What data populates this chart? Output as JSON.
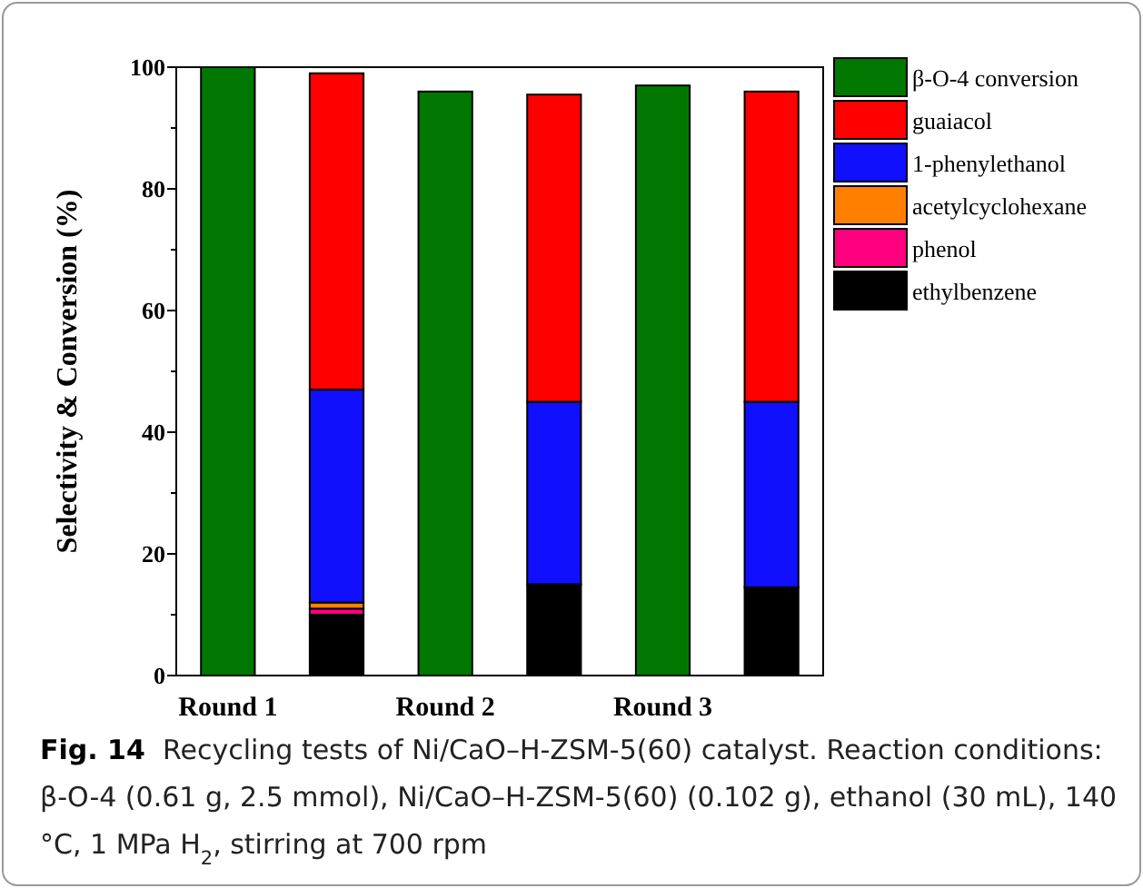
{
  "chart_data": {
    "type": "bar",
    "ylabel": "Selectivity & Conversion (%)",
    "categories": [
      "Round 1",
      null,
      "Round 2",
      null,
      "Round 3",
      null
    ],
    "stacked": true,
    "series": [
      {
        "name": "β-O-4 conversion",
        "color": "#007800",
        "values": [
          100,
          null,
          96,
          null,
          97,
          null
        ]
      },
      {
        "name": "ethylbenzene",
        "color": "#000000",
        "values": [
          null,
          10,
          null,
          15,
          null,
          14.5
        ]
      },
      {
        "name": "phenol",
        "color": "#ff0080",
        "values": [
          null,
          1,
          null,
          0,
          null,
          0
        ]
      },
      {
        "name": "acetylcyclohexane",
        "color": "#ff8000",
        "values": [
          null,
          1,
          null,
          0,
          null,
          0
        ]
      },
      {
        "name": "1-phenylethanol",
        "color": "#1010ff",
        "values": [
          null,
          35,
          null,
          30,
          null,
          30.5
        ]
      },
      {
        "name": "guaiacol",
        "color": "#ff0000",
        "values": [
          null,
          52,
          null,
          50.5,
          null,
          51
        ]
      }
    ],
    "ylim": [
      0,
      100
    ],
    "yticks": [
      0,
      {
        "value": 10,
        "label": null
      },
      20,
      {
        "value": 30,
        "label": null
      },
      40,
      {
        "value": 50,
        "label": null
      },
      60,
      {
        "value": 70,
        "label": null
      },
      80,
      {
        "value": 90,
        "label": null
      },
      100
    ],
    "legend": "right",
    "annotations": [
      "Fig. 14  Recycling tests of Ni/CaO–H-ZSM-5(60) catalyst. Reaction conditions: β-O-4 (0.61 g, 2.5 mmol), Ni/CaO–H-ZSM-5(60) (0.102 g), ethanol (30 mL), 140 °C, 1 MPa H$_{2}$, stirring at 700 rpm"
    ]
  }
}
